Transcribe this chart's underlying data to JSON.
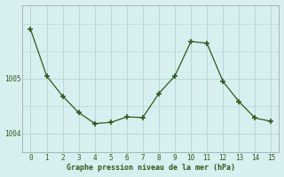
{
  "x": [
    0,
    1,
    2,
    3,
    4,
    5,
    6,
    7,
    8,
    9,
    10,
    11,
    12,
    13,
    14,
    15
  ],
  "y": [
    1005.9,
    1005.05,
    1004.68,
    1004.38,
    1004.18,
    1004.2,
    1004.3,
    1004.29,
    1004.73,
    1005.05,
    1005.68,
    1005.65,
    1004.95,
    1004.58,
    1004.28,
    1004.22
  ],
  "line_color": "#2d5a1b",
  "marker_color": "#2d5a1b",
  "bg_color": "#d8eff0",
  "grid_color": "#b8d8d8",
  "title": "Graphe pression niveau de la mer (hPa)",
  "title_color": "#2d5a1b",
  "ytick_labels": [
    "1004",
    "1005"
  ],
  "ytick_vals": [
    1004.0,
    1005.0
  ],
  "ylim": [
    1003.65,
    1006.35
  ],
  "xlim": [
    -0.5,
    15.5
  ]
}
